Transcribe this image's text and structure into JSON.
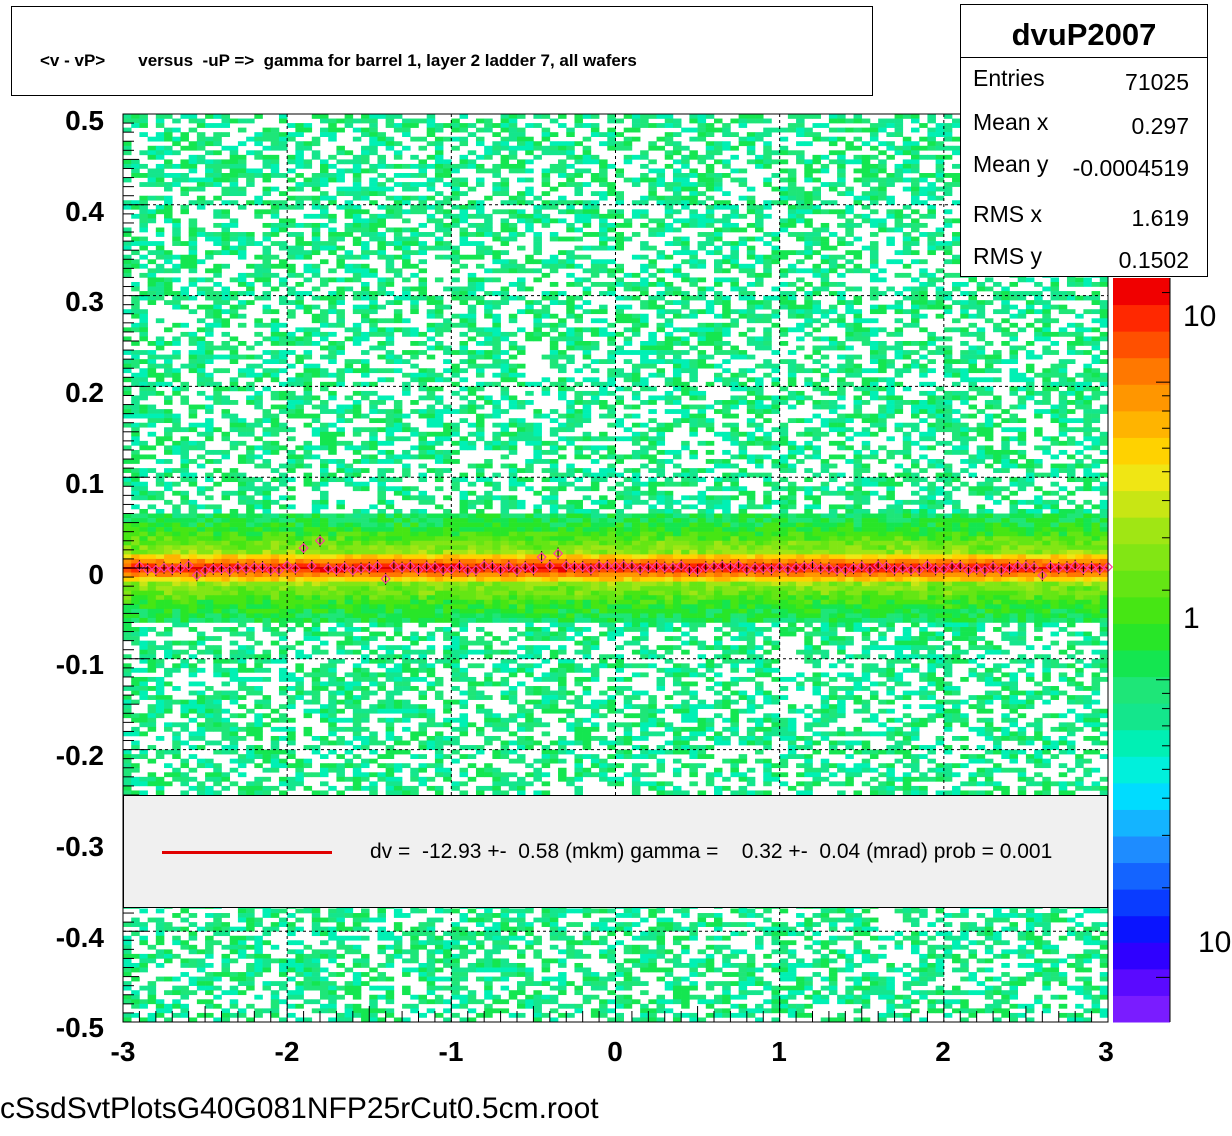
{
  "title": "<v - vP>       versus  -uP =>  gamma for barrel 1, layer 2 ladder 7, all wafers",
  "footer": "cSsdSvtPlotsG40G081NFP25rCut0.5cm.root",
  "stats": {
    "name": "dvuP2007",
    "rows": [
      {
        "key": "Entries",
        "value": "71025"
      },
      {
        "key": "Mean x",
        "value": "0.297"
      },
      {
        "key": "Mean y",
        "value": "-0.0004519"
      },
      {
        "key": "RMS x",
        "value": "1.619"
      },
      {
        "key": "RMS y",
        "value": "0.1502"
      }
    ]
  },
  "legend": {
    "text": "dv =  -12.93 +-  0.58 (mkm) gamma =    0.32 +-  0.04 (mrad) prob = 0.001",
    "line_color": "#e00000"
  },
  "colors": {
    "background": "#ffffff",
    "fit_line": "#e00000",
    "profile_marker": "#ff3da0",
    "grid": "#000000"
  },
  "chart_data": {
    "type": "heatmap",
    "title": "<v - vP>       versus  -uP =>  gamma for barrel 1, layer 2 ladder 7, all wafers",
    "xlabel": "",
    "ylabel": "",
    "xlim": [
      -3,
      3
    ],
    "ylim": [
      -0.5,
      0.5
    ],
    "x_ticks": [
      "-3",
      "-2",
      "-1",
      "0",
      "1",
      "2",
      "3"
    ],
    "y_ticks": [
      "0.5",
      "0.4",
      "0.3",
      "0.2",
      "0.1",
      "0",
      "-0.1",
      "-0.2",
      "-0.3",
      "-0.4",
      "-0.5"
    ],
    "z_scale": "log",
    "z_tick_labels": [
      "10",
      "1",
      "10"
    ],
    "grid": true,
    "density_model": {
      "peak_y": 0.0,
      "core_sigma_y": 0.008,
      "mid_sigma_y": 0.03,
      "flat_background": true
    },
    "fit_line": {
      "intercept": 0.0,
      "slope": 0.0
    },
    "profile": {
      "x_step": 0.05,
      "outliers": [
        {
          "x": -2.55,
          "y": -0.008
        },
        {
          "x": -1.88,
          "y": 0.022
        },
        {
          "x": -1.82,
          "y": 0.03
        },
        {
          "x": -1.42,
          "y": -0.012
        },
        {
          "x": -0.44,
          "y": 0.012
        },
        {
          "x": -0.35,
          "y": 0.016
        },
        {
          "x": 2.62,
          "y": -0.008
        }
      ]
    }
  }
}
